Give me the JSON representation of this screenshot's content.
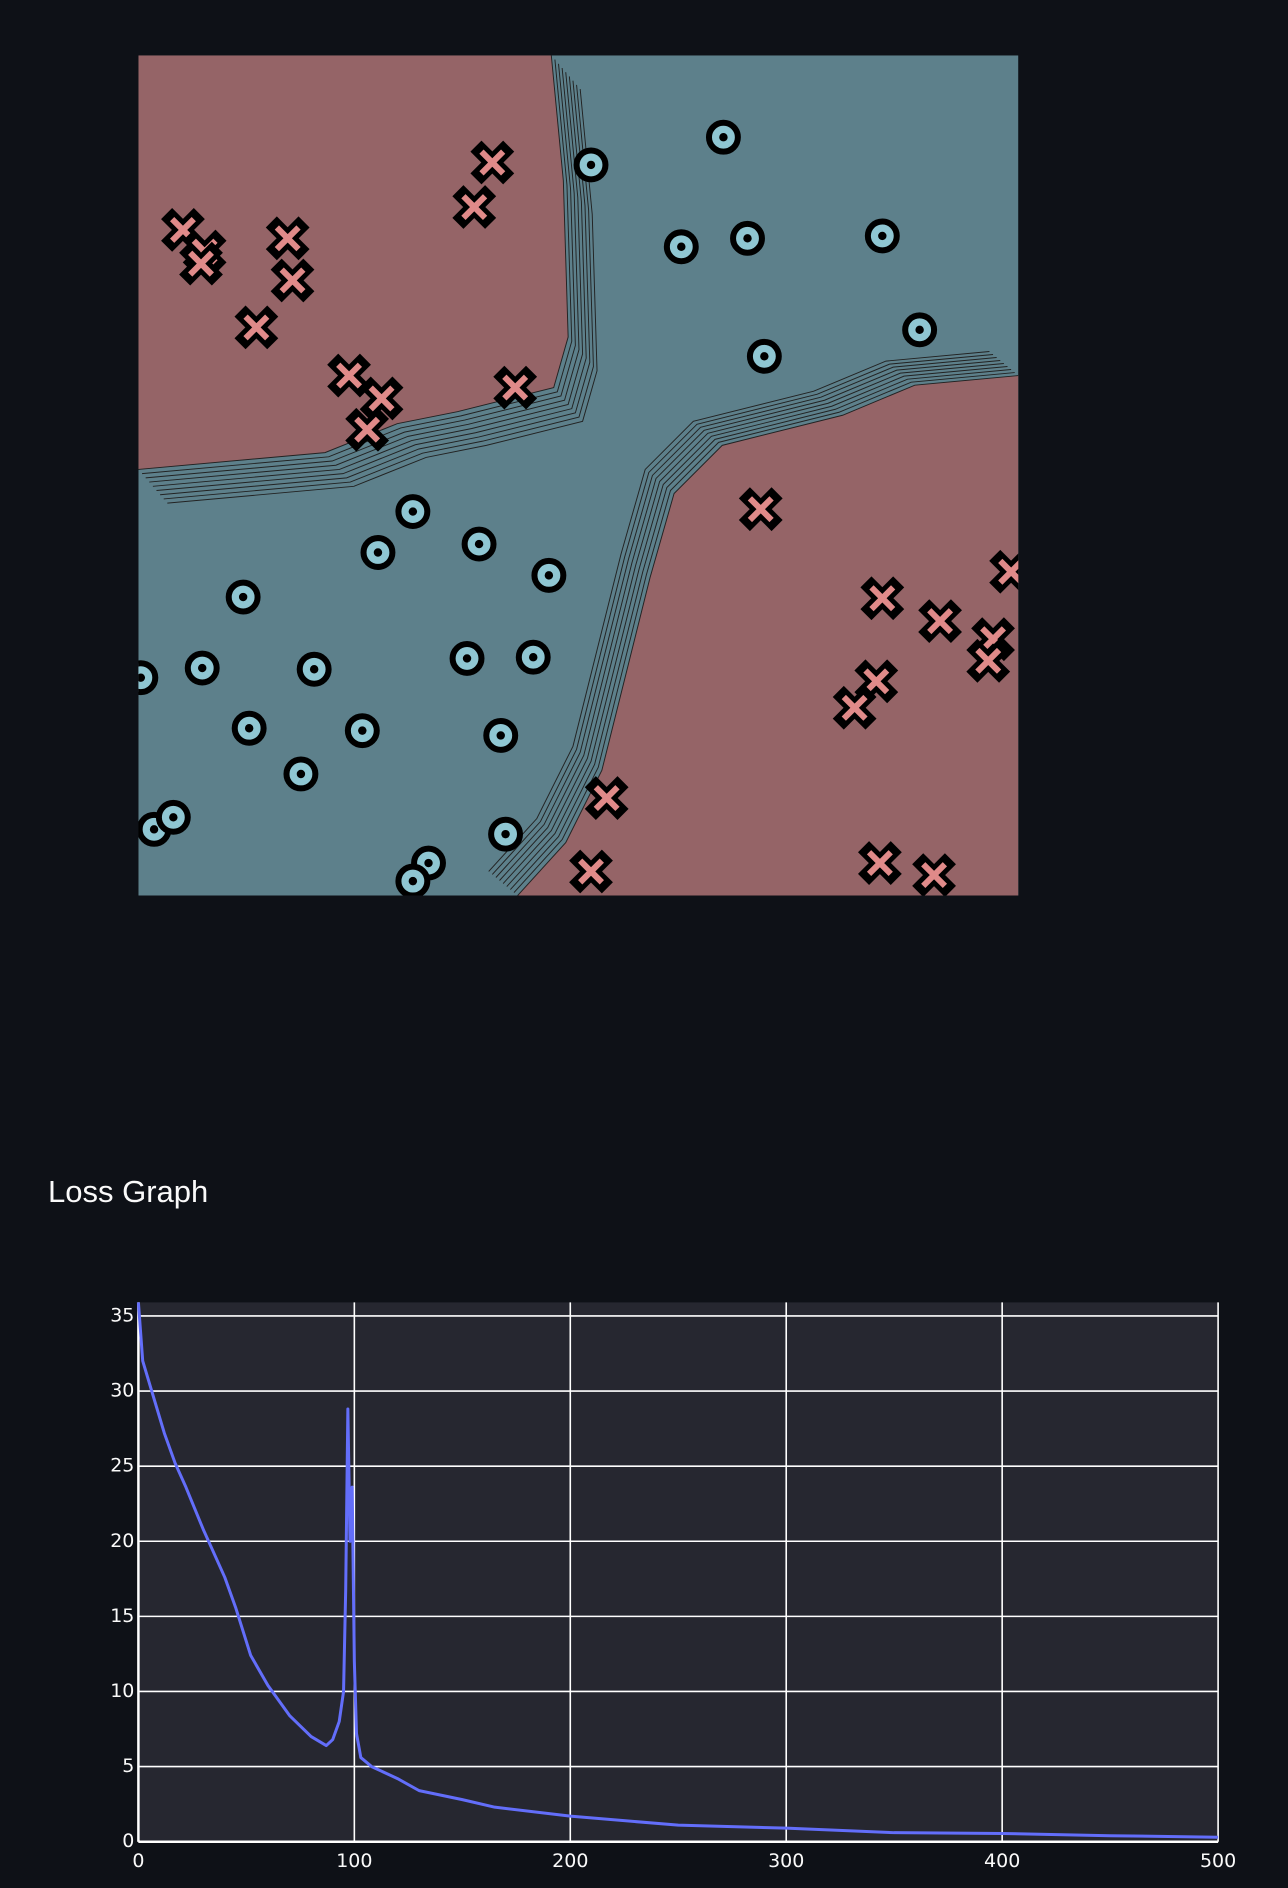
{
  "section_title": "Loss Graph",
  "chart_data": {
    "type": "line",
    "series": [
      {
        "name": "loss",
        "color": "#636efa",
        "x": [
          0,
          2,
          7,
          12,
          17,
          22,
          30,
          40,
          45,
          52,
          60,
          70,
          80,
          87,
          90,
          93,
          95,
          96,
          97,
          98,
          99,
          100,
          101,
          103,
          108,
          120,
          130,
          150,
          165,
          200,
          250,
          300,
          350,
          400,
          450,
          500
        ],
        "values": [
          35.9,
          32,
          29.6,
          27.2,
          25.2,
          23.6,
          20.8,
          17.6,
          15.6,
          12.4,
          10.4,
          8.4,
          7.0,
          6.4,
          6.8,
          8.0,
          10.0,
          16.8,
          28.8,
          20.0,
          23.6,
          12.0,
          7.2,
          5.6,
          5.0,
          4.2,
          3.4,
          2.8,
          2.3,
          1.7,
          1.1,
          0.9,
          0.6,
          0.55,
          0.4,
          0.3
        ]
      }
    ],
    "xlim": [
      0,
      500
    ],
    "xticks": [
      0,
      100,
      200,
      300,
      400,
      500
    ],
    "ylim": [
      0,
      35.9
    ],
    "yticks": [
      0,
      5,
      10,
      15,
      20,
      25,
      30,
      35
    ],
    "grid": true
  }
}
